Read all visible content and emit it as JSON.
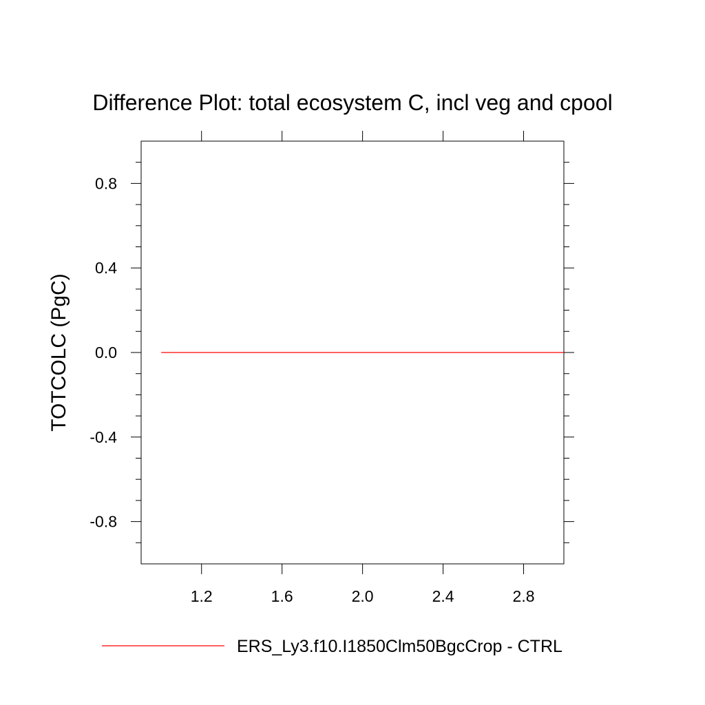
{
  "chart_data": {
    "type": "line",
    "title": "Difference Plot: total ecosystem C, incl veg and cpool",
    "xlabel": "",
    "ylabel": "TOTCOLC  (PgC)",
    "xlim": [
      0.9,
      3.0
    ],
    "ylim": [
      -1.0,
      1.0
    ],
    "x_ticks": [
      1.2,
      1.6,
      2.0,
      2.4,
      2.8
    ],
    "x_tick_labels": [
      "1.2",
      "1.6",
      "2.0",
      "2.4",
      "2.8"
    ],
    "y_ticks": [
      0.8,
      0.4,
      0.0,
      -0.4,
      -0.8
    ],
    "y_tick_labels": [
      "0.8",
      "0.4",
      "0.0",
      "-0.4",
      "-0.8"
    ],
    "grid": false,
    "legend_position": "bottom",
    "series": [
      {
        "name": "ERS_Ly3.f10.I1850Clm50BgcCrop - CTRL",
        "color": "#ff0000",
        "x": [
          1.0,
          2.0,
          3.0
        ],
        "y": [
          0.0,
          0.0,
          0.0
        ]
      }
    ]
  }
}
